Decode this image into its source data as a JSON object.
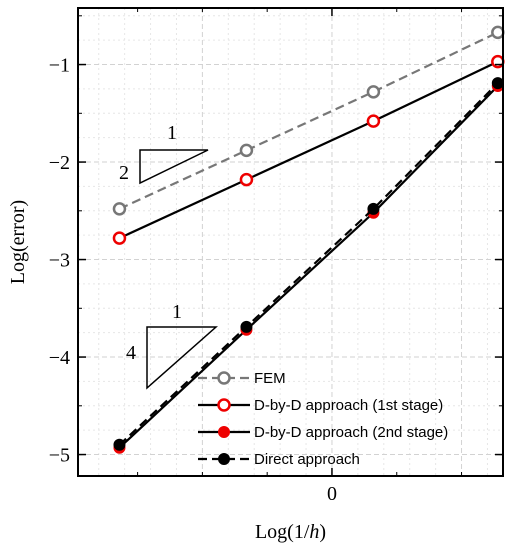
{
  "chart_data": {
    "type": "line",
    "xlabel_main": "Log(1/",
    "xlabel_var": "h",
    "xlabel_end": ")",
    "ylabel": "Log(error)",
    "xlim": [
      -0.98,
      0.66
    ],
    "ylim": [
      -5.22,
      -0.42
    ],
    "x_ticks": [
      0
    ],
    "y_ticks": [
      -1,
      -2,
      -3,
      -4,
      -5
    ],
    "x_minor_step": 0.1,
    "y_minor_step": 0.25,
    "grid": true,
    "legend_position": "bottom-right",
    "series": [
      {
        "name": "FEM",
        "color": "#777777",
        "line": "dashed",
        "marker": "open-circle",
        "marker_color": "#777777",
        "x": [
          -0.82,
          -0.33,
          0.16,
          0.64
        ],
        "y": [
          -2.48,
          -1.88,
          -1.28,
          -0.67
        ]
      },
      {
        "name": "D-by-D approach (1st stage)",
        "color": "#000000",
        "line": "solid",
        "marker": "open-circle",
        "marker_color": "#ee0000",
        "x": [
          -0.82,
          -0.33,
          0.16,
          0.64
        ],
        "y": [
          -2.78,
          -2.18,
          -1.58,
          -0.97
        ]
      },
      {
        "name": "D-by-D approach (2nd stage)",
        "color": "#000000",
        "line": "solid",
        "marker": "filled-circle",
        "marker_color": "#ee0000",
        "x": [
          -0.82,
          -0.33,
          0.16,
          0.64
        ],
        "y": [
          -4.93,
          -3.72,
          -2.52,
          -1.22
        ]
      },
      {
        "name": "Direct approach",
        "color": "#000000",
        "line": "dashed",
        "marker": "filled-circle",
        "marker_color": "#000000",
        "x": [
          -0.82,
          -0.33,
          0.16,
          0.64
        ],
        "y": [
          -4.9,
          -3.69,
          -2.48,
          -1.19
        ]
      }
    ],
    "slope_triangles": [
      {
        "run_label": "1",
        "rise_label": "2"
      },
      {
        "run_label": "1",
        "rise_label": "4"
      }
    ]
  }
}
